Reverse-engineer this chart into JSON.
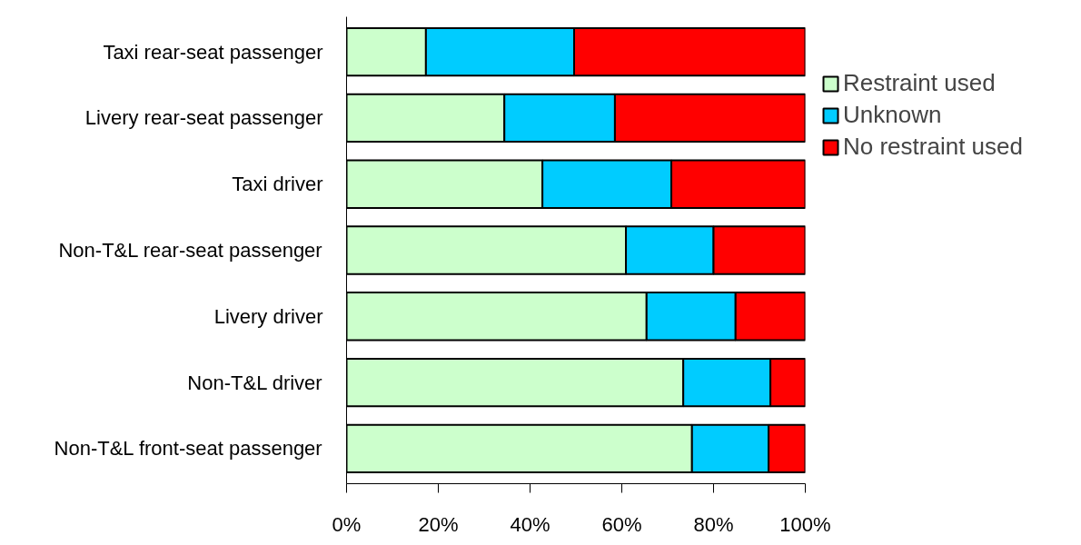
{
  "chart_data": {
    "type": "bar",
    "orientation": "horizontal",
    "stacked": true,
    "categories": [
      "Taxi rear-seat passenger",
      "Livery rear-seat passenger",
      "Taxi driver",
      "Non-T&L rear-seat passenger",
      "Livery driver",
      "Non-T&L driver",
      "Non-T&L front-seat passenger"
    ],
    "series": [
      {
        "name": "Restraint used",
        "color": "#ccffcc",
        "values": [
          17.3,
          34.4,
          42.7,
          60.9,
          65.4,
          73.4,
          75.3
        ]
      },
      {
        "name": "Unknown",
        "color": "#00ccff",
        "values": [
          32.3,
          24.1,
          28.1,
          19.1,
          19.4,
          19.0,
          16.7
        ]
      },
      {
        "name": "No restraint used",
        "color": "#ff0000",
        "values": [
          50.4,
          41.5,
          29.2,
          20.0,
          15.2,
          7.6,
          8.0
        ]
      }
    ],
    "xlim": [
      0,
      100
    ],
    "xticks": [
      {
        "value": 0,
        "label": "0%"
      },
      {
        "value": 20,
        "label": "20%"
      },
      {
        "value": 40,
        "label": "40%"
      },
      {
        "value": 60,
        "label": "60%"
      },
      {
        "value": 80,
        "label": "80%"
      },
      {
        "value": 100,
        "label": "100%"
      }
    ],
    "grid": false,
    "legend": "right"
  }
}
